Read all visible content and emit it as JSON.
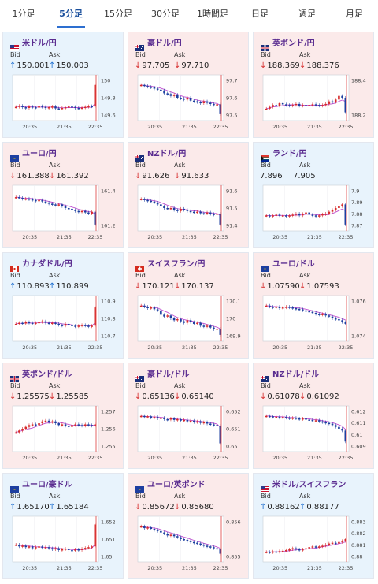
{
  "tabs": [
    {
      "label": "1分足"
    },
    {
      "label": "5分足"
    },
    {
      "label": "15分足"
    },
    {
      "label": "30分足"
    },
    {
      "label": "1時間足"
    },
    {
      "label": "日足"
    },
    {
      "label": "週足"
    },
    {
      "label": "月足"
    }
  ],
  "active_tab": 1,
  "bid_label": "Bid",
  "ask_label": "Ask",
  "x_ticks": [
    "20:35",
    "21:35",
    "22:35"
  ],
  "colors": {
    "up_bg": "#e8f3fc",
    "down_bg": "#fbeaea",
    "arrow_up": "#1e6fd0",
    "arrow_down": "#d62b2b",
    "title": "#5b2d90"
  },
  "cards": [
    {
      "title": "米ドル/円",
      "flag": "us",
      "dir": "up",
      "bid": "150.001",
      "ask": "150.003",
      "bid_dir": "up",
      "ask_dir": "up",
      "y_ticks": [
        "150",
        "149.8",
        "149.6"
      ],
      "trend": [
        0.25,
        0.28,
        0.24,
        0.22,
        0.26,
        0.24,
        0.23,
        0.27,
        0.25,
        0.22,
        0.24,
        0.26,
        0.21,
        0.2,
        0.22,
        0.24,
        0.26,
        0.25,
        0.22,
        0.2,
        0.23,
        0.25,
        0.27,
        0.26,
        0.85
      ]
    },
    {
      "title": "豪ドル/円",
      "flag": "au",
      "dir": "down",
      "bid": "97.705",
      "ask": "97.710",
      "bid_dir": "down",
      "ask_dir": "down",
      "y_ticks": [
        "97.7",
        "97.6",
        "97.5"
      ],
      "trend": [
        0.85,
        0.82,
        0.8,
        0.78,
        0.75,
        0.72,
        0.7,
        0.62,
        0.6,
        0.55,
        0.58,
        0.5,
        0.48,
        0.45,
        0.5,
        0.42,
        0.4,
        0.38,
        0.35,
        0.4,
        0.36,
        0.33,
        0.3,
        0.32,
        0.05
      ]
    },
    {
      "title": "英ポンド/円",
      "flag": "gb",
      "dir": "down",
      "bid": "188.369",
      "ask": "188.376",
      "bid_dir": "down",
      "ask_dir": "down",
      "y_ticks": [
        "188.4",
        "188.2"
      ],
      "trend": [
        0.2,
        0.25,
        0.3,
        0.28,
        0.35,
        0.32,
        0.3,
        0.28,
        0.3,
        0.33,
        0.28,
        0.3,
        0.27,
        0.3,
        0.32,
        0.3,
        0.28,
        0.3,
        0.33,
        0.4,
        0.38,
        0.45,
        0.55,
        0.5,
        0.1
      ]
    },
    {
      "title": "ユーロ/円",
      "flag": "eu",
      "dir": "down",
      "bid": "161.388",
      "ask": "161.392",
      "bid_dir": "down",
      "ask_dir": "down",
      "y_ticks": [
        "161.4",
        "161.2"
      ],
      "trend": [
        0.8,
        0.78,
        0.75,
        0.76,
        0.74,
        0.72,
        0.7,
        0.72,
        0.68,
        0.65,
        0.62,
        0.6,
        0.58,
        0.6,
        0.55,
        0.5,
        0.48,
        0.45,
        0.42,
        0.4,
        0.42,
        0.38,
        0.35,
        0.4,
        0.05
      ]
    },
    {
      "title": "NZドル/円",
      "flag": "nz",
      "dir": "down",
      "bid": "91.626",
      "ask": "91.633",
      "bid_dir": "down",
      "ask_dir": "down",
      "y_ticks": [
        "91.6",
        "91.5",
        "91.4"
      ],
      "trend": [
        0.75,
        0.72,
        0.7,
        0.68,
        0.65,
        0.6,
        0.55,
        0.5,
        0.48,
        0.5,
        0.45,
        0.42,
        0.48,
        0.45,
        0.42,
        0.4,
        0.38,
        0.4,
        0.36,
        0.35,
        0.38,
        0.34,
        0.32,
        0.35,
        0.05
      ]
    },
    {
      "title": "ランド/円",
      "flag": "za",
      "dir": "up",
      "bid": "7.896",
      "ask": "7.905",
      "bid_dir": "none",
      "ask_dir": "none",
      "y_ticks": [
        "7.9",
        "7.89",
        "7.88",
        "7.87"
      ],
      "trend": [
        0.3,
        0.28,
        0.3,
        0.32,
        0.3,
        0.3,
        0.28,
        0.3,
        0.32,
        0.35,
        0.3,
        0.34,
        0.38,
        0.32,
        0.3,
        0.28,
        0.3,
        0.33,
        0.35,
        0.4,
        0.45,
        0.5,
        0.55,
        0.6,
        0.05
      ]
    },
    {
      "title": "カナダドル/円",
      "flag": "ca",
      "dir": "up",
      "bid": "110.893",
      "ask": "110.899",
      "bid_dir": "up",
      "ask_dir": "up",
      "y_ticks": [
        "110.9",
        "110.8",
        "110.7"
      ],
      "trend": [
        0.35,
        0.38,
        0.36,
        0.4,
        0.38,
        0.36,
        0.38,
        0.4,
        0.42,
        0.38,
        0.36,
        0.38,
        0.35,
        0.32,
        0.3,
        0.35,
        0.32,
        0.3,
        0.28,
        0.3,
        0.32,
        0.3,
        0.28,
        0.3,
        0.8
      ]
    },
    {
      "title": "スイスフラン/円",
      "flag": "ch",
      "dir": "down",
      "bid": "170.121",
      "ask": "170.137",
      "bid_dir": "down",
      "ask_dir": "down",
      "y_ticks": [
        "170.1",
        "170",
        "169.9"
      ],
      "trend": [
        0.85,
        0.82,
        0.78,
        0.8,
        0.75,
        0.72,
        0.6,
        0.55,
        0.58,
        0.5,
        0.45,
        0.48,
        0.42,
        0.38,
        0.45,
        0.4,
        0.35,
        0.38,
        0.3,
        0.28,
        0.3,
        0.25,
        0.2,
        0.22,
        0.05
      ]
    },
    {
      "title": "ユーロ/ドル",
      "flag": "eu",
      "dir": "down",
      "bid": "1.07590",
      "ask": "1.07593",
      "bid_dir": "down",
      "ask_dir": "down",
      "y_ticks": [
        "1.076",
        "1.074"
      ],
      "trend": [
        0.85,
        0.82,
        0.8,
        0.82,
        0.78,
        0.8,
        0.82,
        0.8,
        0.78,
        0.76,
        0.75,
        0.72,
        0.7,
        0.68,
        0.65,
        0.62,
        0.6,
        0.62,
        0.58,
        0.55,
        0.5,
        0.48,
        0.45,
        0.4,
        0.35
      ]
    },
    {
      "title": "英ポンド/ドル",
      "flag": "gb",
      "dir": "down",
      "bid": "1.25575",
      "ask": "1.25585",
      "bid_dir": "down",
      "ask_dir": "down",
      "y_ticks": [
        "1.257",
        "1.256",
        "1.255"
      ],
      "trend": [
        0.4,
        0.45,
        0.5,
        0.55,
        0.6,
        0.62,
        0.6,
        0.65,
        0.7,
        0.72,
        0.68,
        0.7,
        0.65,
        0.6,
        0.62,
        0.58,
        0.55,
        0.6,
        0.62,
        0.6,
        0.58,
        0.62,
        0.6,
        0.58,
        0.62
      ]
    },
    {
      "title": "豪ドル/ドル",
      "flag": "au",
      "dir": "down",
      "bid": "0.65136",
      "ask": "0.65140",
      "bid_dir": "down",
      "ask_dir": "down",
      "y_ticks": [
        "0.652",
        "0.651",
        "0.65"
      ],
      "trend": [
        0.85,
        0.82,
        0.84,
        0.8,
        0.82,
        0.78,
        0.8,
        0.76,
        0.75,
        0.78,
        0.74,
        0.76,
        0.72,
        0.74,
        0.7,
        0.72,
        0.68,
        0.7,
        0.66,
        0.68,
        0.64,
        0.62,
        0.6,
        0.58,
        0.1
      ]
    },
    {
      "title": "NZドル/ドル",
      "flag": "nz",
      "dir": "down",
      "bid": "0.61078",
      "ask": "0.61092",
      "bid_dir": "down",
      "ask_dir": "down",
      "y_ticks": [
        "0.612",
        "0.611",
        "0.61",
        "0.609"
      ],
      "trend": [
        0.85,
        0.84,
        0.82,
        0.83,
        0.8,
        0.82,
        0.8,
        0.78,
        0.8,
        0.78,
        0.76,
        0.78,
        0.75,
        0.74,
        0.72,
        0.73,
        0.7,
        0.68,
        0.66,
        0.64,
        0.6,
        0.55,
        0.5,
        0.45,
        0.15
      ]
    },
    {
      "title": "ユーロ/豪ドル",
      "flag": "eu",
      "dir": "up",
      "bid": "1.65170",
      "ask": "1.65184",
      "bid_dir": "up",
      "ask_dir": "up",
      "y_ticks": [
        "1.652",
        "1.651",
        "1.65"
      ],
      "trend": [
        0.35,
        0.3,
        0.32,
        0.28,
        0.3,
        0.25,
        0.28,
        0.3,
        0.26,
        0.28,
        0.25,
        0.22,
        0.25,
        0.2,
        0.22,
        0.24,
        0.2,
        0.18,
        0.22,
        0.2,
        0.24,
        0.26,
        0.28,
        0.3,
        0.9
      ]
    },
    {
      "title": "ユーロ/英ポンド",
      "flag": "eu",
      "dir": "down",
      "bid": "0.85672",
      "ask": "0.85680",
      "bid_dir": "down",
      "ask_dir": "down",
      "y_ticks": [
        "0.856",
        "0.855"
      ],
      "trend": [
        0.85,
        0.8,
        0.82,
        0.78,
        0.75,
        0.72,
        0.68,
        0.65,
        0.6,
        0.62,
        0.58,
        0.55,
        0.5,
        0.48,
        0.45,
        0.42,
        0.4,
        0.38,
        0.35,
        0.32,
        0.3,
        0.28,
        0.25,
        0.22,
        0.1
      ]
    },
    {
      "title": "米ドル/スイスフラン",
      "flag": "us",
      "dir": "up",
      "bid": "0.88162",
      "ask": "0.88177",
      "bid_dir": "up",
      "ask_dir": "up",
      "y_ticks": [
        "0.883",
        "0.882",
        "0.881",
        "0.88"
      ],
      "trend": [
        0.15,
        0.14,
        0.16,
        0.15,
        0.17,
        0.18,
        0.2,
        0.22,
        0.25,
        0.22,
        0.2,
        0.22,
        0.25,
        0.28,
        0.3,
        0.28,
        0.3,
        0.32,
        0.35,
        0.38,
        0.4,
        0.38,
        0.42,
        0.45,
        0.5
      ]
    }
  ]
}
